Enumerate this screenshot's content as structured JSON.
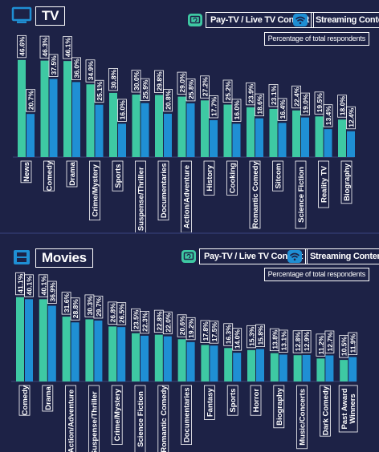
{
  "colors": {
    "background": "#1d2246",
    "pay_tv": "#3ec9a3",
    "streaming": "#1f8fd4",
    "text": "#ffffff"
  },
  "legend": {
    "pay_tv_label": "Pay-TV / Live TV Content",
    "streaming_label": "Streaming Content",
    "pay_tv_icon": "tv-refresh-icon",
    "streaming_icon": "wifi-icon"
  },
  "subtitle": "Percentage of total respondents",
  "tv": {
    "title": "TV",
    "icon": "tv-icon"
  },
  "movies": {
    "title": "Movies",
    "icon": "film-icon"
  },
  "chart_data": [
    {
      "type": "bar",
      "title": "TV",
      "subtitle": "Percentage of total respondents",
      "categories": [
        "News",
        "Comedy",
        "Drama",
        "Crime/Mystery",
        "Sports",
        "Suspense/Thriller",
        "Documentaries",
        "Action/Adventure",
        "History",
        "Cooking",
        "Romantic Comedy",
        "Sitcom",
        "Science Fiction",
        "Reality TV",
        "Biography"
      ],
      "series": [
        {
          "name": "Pay-TV / Live TV Content",
          "values": [
            46.6,
            46.3,
            46.1,
            34.9,
            30.8,
            30.0,
            29.8,
            29.0,
            27.2,
            25.2,
            23.9,
            23.1,
            22.4,
            19.5,
            18.0
          ],
          "labels": [
            "46.6%",
            "46.3%",
            "46.1%",
            "34.9%",
            "30.8%",
            "30.0%",
            "29.8%",
            "29.0%",
            "27.2%",
            "25.2%",
            "23.9%",
            "23.1%",
            "22.4%",
            "19.5%",
            "18.0%"
          ]
        },
        {
          "name": "Streaming Content",
          "values": [
            20.7,
            37.5,
            36.0,
            25.1,
            16.0,
            25.9,
            20.8,
            25.8,
            17.7,
            16.0,
            18.6,
            16.4,
            19.0,
            13.4,
            12.4
          ],
          "labels": [
            "20.7%",
            "37.5%",
            "36.0%",
            "25.1%",
            "16.0%",
            "25.9%",
            "20.8%",
            "25.8%",
            "17.7%",
            "16.0%",
            "18.6%",
            "16.4%",
            "19.0%",
            "13.4%",
            "12.4%"
          ]
        }
      ],
      "ylim": [
        0,
        50
      ],
      "grid": false,
      "legend_position": "top-right"
    },
    {
      "type": "bar",
      "title": "Movies",
      "subtitle": "Percentage of total respondents",
      "categories": [
        "Comedy",
        "Drama",
        "Action/Adventure",
        "Suspense/Thriller",
        "Crime/Mystery",
        "Science Fiction",
        "Romantic Comedy",
        "Documentaries",
        "Fantasy",
        "Sports",
        "Horror",
        "Biography",
        "Music/Concerts",
        "Dark Comedy",
        "Past Award Winners"
      ],
      "series": [
        {
          "name": "Pay-TV / Live TV Content",
          "values": [
            41.1,
            40.1,
            31.6,
            30.3,
            26.8,
            23.5,
            22.8,
            20.6,
            17.8,
            16.3,
            15.3,
            13.8,
            12.8,
            11.2,
            10.5
          ],
          "labels": [
            "41.1%",
            "40.1%",
            "31.6%",
            "30.3%",
            "26.8%",
            "23.5%",
            "22.8%",
            "20.6%",
            "17.8%",
            "16.3%",
            "15.3%",
            "13.8%",
            "12.8%",
            "11.2%",
            "10.5%"
          ]
        },
        {
          "name": "Streaming Content",
          "values": [
            40.1,
            36.9,
            28.8,
            29.7,
            26.5,
            22.3,
            22.0,
            19.2,
            17.5,
            14.0,
            15.8,
            13.1,
            12.9,
            12.7,
            11.9
          ],
          "labels": [
            "40.1%",
            "36.9%",
            "28.8%",
            "29.7%",
            "26.5%",
            "22.3%",
            "22.0%",
            "19.2%",
            "17.5%",
            "14.0%",
            "15.8%",
            "13.1%",
            "12.9%",
            "12.7%",
            "11.9%"
          ]
        }
      ],
      "ylim": [
        0,
        50
      ],
      "grid": false,
      "legend_position": "top-right"
    }
  ]
}
